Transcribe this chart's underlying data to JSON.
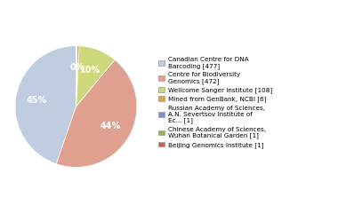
{
  "legend_labels": [
    "Canadian Centre for DNA\nBarcoding [477]",
    "Centre for Biodiversity\nGenomics [472]",
    "Wellcome Sanger Institute [108]",
    "Mined from GenBank, NCBI [6]",
    "Russian Academy of Sciences,\nA.N. Severtsov Institute of\nEc... [1]",
    "Chinese Academy of Sciences,\nWuhan Botanical Garden [1]",
    "Beijing Genomics Institute [1]"
  ],
  "values": [
    477,
    472,
    108,
    6,
    1,
    1,
    1
  ],
  "colors": [
    "#c0cce0",
    "#e0a090",
    "#ccd87a",
    "#e8a030",
    "#8090cc",
    "#88b858",
    "#d06050"
  ],
  "startangle": 90,
  "figsize": [
    3.8,
    2.4
  ],
  "dpi": 100
}
